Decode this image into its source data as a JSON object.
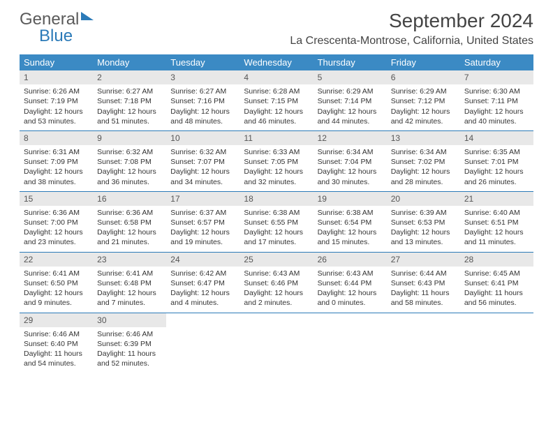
{
  "logo": {
    "text1": "General",
    "text2": "Blue"
  },
  "title": "September 2024",
  "location": "La Crescenta-Montrose, California, United States",
  "colors": {
    "header_bg": "#3b8ac4",
    "border": "#2b7ab8",
    "daynum_bg": "#e8e8e8",
    "text": "#333333"
  },
  "dow": [
    "Sunday",
    "Monday",
    "Tuesday",
    "Wednesday",
    "Thursday",
    "Friday",
    "Saturday"
  ],
  "weeks": [
    [
      {
        "n": "1",
        "sr": "Sunrise: 6:26 AM",
        "ss": "Sunset: 7:19 PM",
        "dl": "Daylight: 12 hours and 53 minutes."
      },
      {
        "n": "2",
        "sr": "Sunrise: 6:27 AM",
        "ss": "Sunset: 7:18 PM",
        "dl": "Daylight: 12 hours and 51 minutes."
      },
      {
        "n": "3",
        "sr": "Sunrise: 6:27 AM",
        "ss": "Sunset: 7:16 PM",
        "dl": "Daylight: 12 hours and 48 minutes."
      },
      {
        "n": "4",
        "sr": "Sunrise: 6:28 AM",
        "ss": "Sunset: 7:15 PM",
        "dl": "Daylight: 12 hours and 46 minutes."
      },
      {
        "n": "5",
        "sr": "Sunrise: 6:29 AM",
        "ss": "Sunset: 7:14 PM",
        "dl": "Daylight: 12 hours and 44 minutes."
      },
      {
        "n": "6",
        "sr": "Sunrise: 6:29 AM",
        "ss": "Sunset: 7:12 PM",
        "dl": "Daylight: 12 hours and 42 minutes."
      },
      {
        "n": "7",
        "sr": "Sunrise: 6:30 AM",
        "ss": "Sunset: 7:11 PM",
        "dl": "Daylight: 12 hours and 40 minutes."
      }
    ],
    [
      {
        "n": "8",
        "sr": "Sunrise: 6:31 AM",
        "ss": "Sunset: 7:09 PM",
        "dl": "Daylight: 12 hours and 38 minutes."
      },
      {
        "n": "9",
        "sr": "Sunrise: 6:32 AM",
        "ss": "Sunset: 7:08 PM",
        "dl": "Daylight: 12 hours and 36 minutes."
      },
      {
        "n": "10",
        "sr": "Sunrise: 6:32 AM",
        "ss": "Sunset: 7:07 PM",
        "dl": "Daylight: 12 hours and 34 minutes."
      },
      {
        "n": "11",
        "sr": "Sunrise: 6:33 AM",
        "ss": "Sunset: 7:05 PM",
        "dl": "Daylight: 12 hours and 32 minutes."
      },
      {
        "n": "12",
        "sr": "Sunrise: 6:34 AM",
        "ss": "Sunset: 7:04 PM",
        "dl": "Daylight: 12 hours and 30 minutes."
      },
      {
        "n": "13",
        "sr": "Sunrise: 6:34 AM",
        "ss": "Sunset: 7:02 PM",
        "dl": "Daylight: 12 hours and 28 minutes."
      },
      {
        "n": "14",
        "sr": "Sunrise: 6:35 AM",
        "ss": "Sunset: 7:01 PM",
        "dl": "Daylight: 12 hours and 26 minutes."
      }
    ],
    [
      {
        "n": "15",
        "sr": "Sunrise: 6:36 AM",
        "ss": "Sunset: 7:00 PM",
        "dl": "Daylight: 12 hours and 23 minutes."
      },
      {
        "n": "16",
        "sr": "Sunrise: 6:36 AM",
        "ss": "Sunset: 6:58 PM",
        "dl": "Daylight: 12 hours and 21 minutes."
      },
      {
        "n": "17",
        "sr": "Sunrise: 6:37 AM",
        "ss": "Sunset: 6:57 PM",
        "dl": "Daylight: 12 hours and 19 minutes."
      },
      {
        "n": "18",
        "sr": "Sunrise: 6:38 AM",
        "ss": "Sunset: 6:55 PM",
        "dl": "Daylight: 12 hours and 17 minutes."
      },
      {
        "n": "19",
        "sr": "Sunrise: 6:38 AM",
        "ss": "Sunset: 6:54 PM",
        "dl": "Daylight: 12 hours and 15 minutes."
      },
      {
        "n": "20",
        "sr": "Sunrise: 6:39 AM",
        "ss": "Sunset: 6:53 PM",
        "dl": "Daylight: 12 hours and 13 minutes."
      },
      {
        "n": "21",
        "sr": "Sunrise: 6:40 AM",
        "ss": "Sunset: 6:51 PM",
        "dl": "Daylight: 12 hours and 11 minutes."
      }
    ],
    [
      {
        "n": "22",
        "sr": "Sunrise: 6:41 AM",
        "ss": "Sunset: 6:50 PM",
        "dl": "Daylight: 12 hours and 9 minutes."
      },
      {
        "n": "23",
        "sr": "Sunrise: 6:41 AM",
        "ss": "Sunset: 6:48 PM",
        "dl": "Daylight: 12 hours and 7 minutes."
      },
      {
        "n": "24",
        "sr": "Sunrise: 6:42 AM",
        "ss": "Sunset: 6:47 PM",
        "dl": "Daylight: 12 hours and 4 minutes."
      },
      {
        "n": "25",
        "sr": "Sunrise: 6:43 AM",
        "ss": "Sunset: 6:46 PM",
        "dl": "Daylight: 12 hours and 2 minutes."
      },
      {
        "n": "26",
        "sr": "Sunrise: 6:43 AM",
        "ss": "Sunset: 6:44 PM",
        "dl": "Daylight: 12 hours and 0 minutes."
      },
      {
        "n": "27",
        "sr": "Sunrise: 6:44 AM",
        "ss": "Sunset: 6:43 PM",
        "dl": "Daylight: 11 hours and 58 minutes."
      },
      {
        "n": "28",
        "sr": "Sunrise: 6:45 AM",
        "ss": "Sunset: 6:41 PM",
        "dl": "Daylight: 11 hours and 56 minutes."
      }
    ],
    [
      {
        "n": "29",
        "sr": "Sunrise: 6:46 AM",
        "ss": "Sunset: 6:40 PM",
        "dl": "Daylight: 11 hours and 54 minutes."
      },
      {
        "n": "30",
        "sr": "Sunrise: 6:46 AM",
        "ss": "Sunset: 6:39 PM",
        "dl": "Daylight: 11 hours and 52 minutes."
      },
      {
        "n": "",
        "sr": "",
        "ss": "",
        "dl": ""
      },
      {
        "n": "",
        "sr": "",
        "ss": "",
        "dl": ""
      },
      {
        "n": "",
        "sr": "",
        "ss": "",
        "dl": ""
      },
      {
        "n": "",
        "sr": "",
        "ss": "",
        "dl": ""
      },
      {
        "n": "",
        "sr": "",
        "ss": "",
        "dl": ""
      }
    ]
  ]
}
